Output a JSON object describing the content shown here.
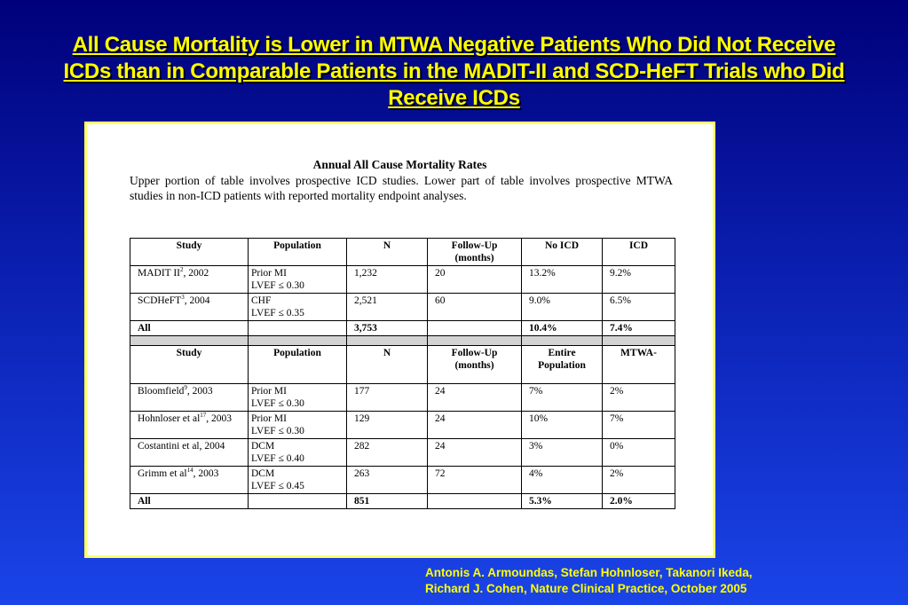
{
  "slide": {
    "title": "All Cause Mortality is Lower in MTWA Negative Patients Who Did Not Receive ICDs than in Comparable Patients in the MADIT-II and SCD-HeFT Trials who Did Receive ICDs",
    "credit_line1": "Antonis A. Armoundas, Stefan Hohnloser, Takanori Ikeda,",
    "credit_line2": "Richard J. Cohen, Nature Clinical Practice, October 2005"
  },
  "panel": {
    "heading": "Annual All Cause Mortality Rates",
    "intro": "Upper portion of table involves prospective ICD studies.  Lower part of table involves prospective MTWA studies in non-ICD patients with reported mortality endpoint analyses."
  },
  "upper": {
    "headers": [
      "Study",
      "Population",
      "N",
      "Follow-Up (months)",
      "No ICD",
      "ICD"
    ],
    "rows": [
      {
        "study": "MADIT II",
        "ref": "2",
        "year": ", 2002",
        "pop1": "Prior MI",
        "pop2": "LVEF ≤ 0.30",
        "n": "1,232",
        "fu": "20",
        "c5": "13.2%",
        "c6": "9.2%"
      },
      {
        "study": "SCDHeFT",
        "ref": "3",
        "year": ", 2004",
        "pop1": "CHF",
        "pop2": "LVEF ≤ 0.35",
        "n": "2,521",
        "fu": "60",
        "c5": "9.0%",
        "c6": "6.5%"
      }
    ],
    "total": {
      "label": "All",
      "n": "3,753",
      "c5": "10.4%",
      "c6": "7.4%"
    }
  },
  "lower": {
    "headers": [
      "Study",
      "Population",
      "N",
      "Follow-Up (months)",
      "Entire Population",
      "MTWA-"
    ],
    "rows": [
      {
        "study": "Bloomfield",
        "ref": "9",
        "year": ", 2003",
        "pop1": "Prior MI",
        "pop2": "LVEF ≤ 0.30",
        "n": "177",
        "fu": "24",
        "c5": "7%",
        "c6": "2%"
      },
      {
        "study": "Hohnloser et al",
        "ref": "17",
        "year": ", 2003",
        "pop1": "Prior MI",
        "pop2": "LVEF ≤ 0.30",
        "n": "129",
        "fu": "24",
        "c5": "10%",
        "c6": "7%"
      },
      {
        "study": "Costantini et al, 2004",
        "ref": "",
        "year": "",
        "pop1": "DCM",
        "pop2": "LVEF ≤ 0.40",
        "n": "282",
        "fu": "24",
        "c5": "3%",
        "c6": "0%"
      },
      {
        "study": "Grimm et al",
        "ref": "14",
        "year": ", 2003",
        "pop1": "DCM",
        "pop2": "LVEF ≤ 0.45",
        "n": "263",
        "fu": "72",
        "c5": "4%",
        "c6": "2%"
      }
    ],
    "total": {
      "label": "All",
      "n": "851",
      "c5": "5.3%",
      "c6": "2.0%"
    }
  },
  "colors": {
    "background": "#0a1fb0",
    "title": "#ffff00",
    "panel_border": "#ffff66",
    "separator": "#d3d3d3"
  }
}
